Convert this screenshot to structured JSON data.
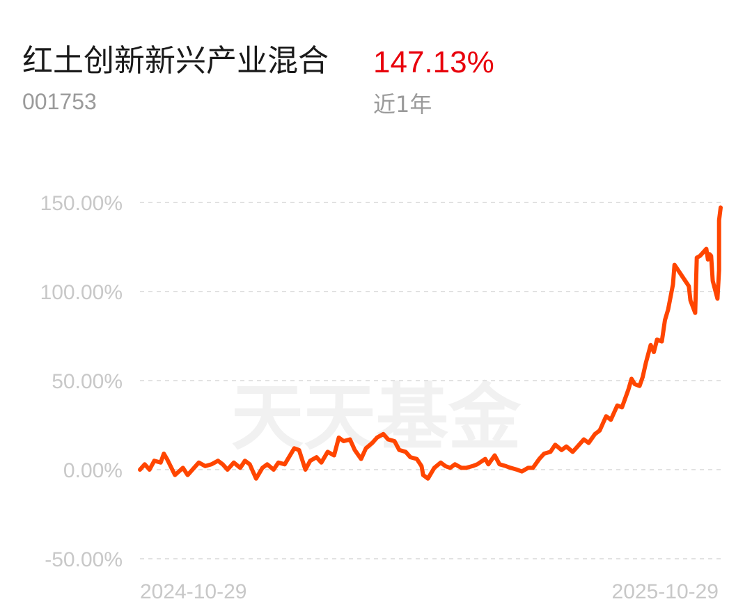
{
  "header": {
    "fund_name": "红土创新新兴产业混合",
    "fund_code": "001753",
    "return_value": "147.13%",
    "period_label": "近1年"
  },
  "watermark": "天天基金",
  "colors": {
    "line": "#ff4500",
    "return_text": "#e8000b",
    "grid": "#e2e2e2",
    "axis_text": "#c8c8c8",
    "watermark": "#f1f1f1"
  },
  "chart_data": {
    "type": "line",
    "x_range": [
      "2024-10-29",
      "2025-10-29"
    ],
    "x_tick_labels": [
      "2024-10-29",
      "2025-10-29"
    ],
    "ylim": [
      -50,
      150
    ],
    "y_ticks": [
      150,
      100,
      50,
      0,
      -50
    ],
    "y_tick_labels": [
      "150.00%",
      "100.00%",
      "50.00%",
      "0.00%",
      "-50.00%"
    ],
    "grid": true,
    "series": [
      {
        "points": [
          [
            "2024-10-29",
            0
          ],
          [
            "2024-11-01",
            3
          ],
          [
            "2024-11-04",
            0
          ],
          [
            "2024-11-07",
            5
          ],
          [
            "2024-11-11",
            4
          ],
          [
            "2024-11-13",
            9
          ],
          [
            "2024-11-15",
            6
          ],
          [
            "2024-11-20",
            -3
          ],
          [
            "2024-11-25",
            1
          ],
          [
            "2024-11-28",
            -3
          ],
          [
            "2024-12-02",
            1
          ],
          [
            "2024-12-05",
            4
          ],
          [
            "2024-12-09",
            2
          ],
          [
            "2024-12-13",
            3
          ],
          [
            "2024-12-17",
            5
          ],
          [
            "2024-12-20",
            3
          ],
          [
            "2024-12-23",
            0
          ],
          [
            "2024-12-27",
            4
          ],
          [
            "2024-12-31",
            1
          ],
          [
            "2025-01-03",
            5
          ],
          [
            "2025-01-06",
            3
          ],
          [
            "2025-01-08",
            -1
          ],
          [
            "2025-01-10",
            -5
          ],
          [
            "2025-01-14",
            1
          ],
          [
            "2025-01-17",
            3
          ],
          [
            "2025-01-21",
            0
          ],
          [
            "2025-01-24",
            4
          ],
          [
            "2025-01-28",
            3
          ],
          [
            "2025-02-03",
            12
          ],
          [
            "2025-02-06",
            11
          ],
          [
            "2025-02-10",
            0
          ],
          [
            "2025-02-13",
            5
          ],
          [
            "2025-02-17",
            7
          ],
          [
            "2025-02-20",
            4
          ],
          [
            "2025-02-24",
            10
          ],
          [
            "2025-02-28",
            8
          ],
          [
            "2025-03-03",
            18
          ],
          [
            "2025-03-06",
            16
          ],
          [
            "2025-03-10",
            17
          ],
          [
            "2025-03-13",
            11
          ],
          [
            "2025-03-17",
            6
          ],
          [
            "2025-03-20",
            12
          ],
          [
            "2025-03-24",
            15
          ],
          [
            "2025-03-27",
            18
          ],
          [
            "2025-03-31",
            20
          ],
          [
            "2025-04-03",
            17
          ],
          [
            "2025-04-07",
            16
          ],
          [
            "2025-04-10",
            11
          ],
          [
            "2025-04-14",
            10
          ],
          [
            "2025-04-17",
            7
          ],
          [
            "2025-04-21",
            6
          ],
          [
            "2025-04-24",
            2
          ],
          [
            "2025-04-25",
            -3
          ],
          [
            "2025-04-28",
            -5
          ],
          [
            "2025-05-02",
            1
          ],
          [
            "2025-05-06",
            4
          ],
          [
            "2025-05-09",
            2
          ],
          [
            "2025-05-12",
            1
          ],
          [
            "2025-05-15",
            3
          ],
          [
            "2025-05-19",
            1
          ],
          [
            "2025-05-22",
            1
          ],
          [
            "2025-05-26",
            2
          ],
          [
            "2025-05-29",
            3
          ],
          [
            "2025-06-03",
            6
          ],
          [
            "2025-06-05",
            3
          ],
          [
            "2025-06-09",
            8
          ],
          [
            "2025-06-12",
            3
          ],
          [
            "2025-06-16",
            2
          ],
          [
            "2025-06-19",
            1
          ],
          [
            "2025-06-23",
            0
          ],
          [
            "2025-06-26",
            -1
          ],
          [
            "2025-06-30",
            1
          ],
          [
            "2025-07-03",
            1
          ],
          [
            "2025-07-07",
            6
          ],
          [
            "2025-07-10",
            9
          ],
          [
            "2025-07-14",
            10
          ],
          [
            "2025-07-17",
            14
          ],
          [
            "2025-07-21",
            11
          ],
          [
            "2025-07-24",
            13
          ],
          [
            "2025-07-28",
            10
          ],
          [
            "2025-07-31",
            13
          ],
          [
            "2025-08-04",
            17
          ],
          [
            "2025-08-07",
            15
          ],
          [
            "2025-08-11",
            20
          ],
          [
            "2025-08-14",
            22
          ],
          [
            "2025-08-18",
            30
          ],
          [
            "2025-08-21",
            28
          ],
          [
            "2025-08-25",
            36
          ],
          [
            "2025-08-28",
            35
          ],
          [
            "2025-09-01",
            45
          ],
          [
            "2025-09-03",
            51
          ],
          [
            "2025-09-05",
            48
          ],
          [
            "2025-09-08",
            47
          ],
          [
            "2025-09-10",
            52
          ],
          [
            "2025-09-12",
            60
          ],
          [
            "2025-09-15",
            70
          ],
          [
            "2025-09-17",
            66
          ],
          [
            "2025-09-19",
            73
          ],
          [
            "2025-09-22",
            72
          ],
          [
            "2025-09-24",
            84
          ],
          [
            "2025-09-26",
            90
          ],
          [
            "2025-09-29",
            104
          ],
          [
            "2025-09-30",
            115
          ],
          [
            "2025-10-09",
            103
          ],
          [
            "2025-10-10",
            95
          ],
          [
            "2025-10-13",
            88
          ],
          [
            "2025-10-14",
            119
          ],
          [
            "2025-10-16",
            120
          ],
          [
            "2025-10-17",
            121
          ],
          [
            "2025-10-20",
            124
          ],
          [
            "2025-10-21",
            118
          ],
          [
            "2025-10-22",
            121
          ],
          [
            "2025-10-23",
            120
          ],
          [
            "2025-10-24",
            106
          ],
          [
            "2025-10-27",
            96
          ],
          [
            "2025-10-28",
            112
          ],
          [
            "2025-10-28",
            120
          ],
          [
            "2025-10-28",
            140
          ],
          [
            "2025-10-29",
            147.13
          ]
        ]
      }
    ]
  }
}
